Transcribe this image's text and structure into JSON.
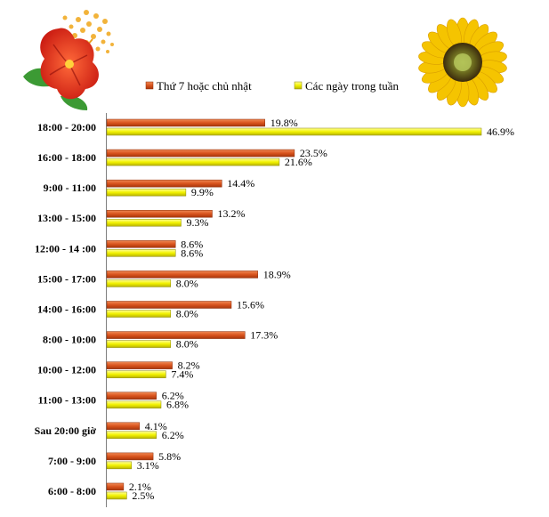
{
  "chart_data": {
    "type": "bar",
    "orientation": "horizontal",
    "categories": [
      "18:00 - 20:00",
      "16:00 - 18:00",
      "9:00 - 11:00",
      "13:00 - 15:00",
      "12:00 - 14 :00",
      "15:00 - 17:00",
      "14:00 - 16:00",
      "8:00 - 10:00",
      "10:00 - 12:00",
      "11:00 - 13:00",
      "Sau 20:00 giờ",
      "7:00 - 9:00",
      "6:00 - 8:00"
    ],
    "series": [
      {
        "name": "Thứ 7 hoặc chủ nhật",
        "color": "#d9541e",
        "values": [
          19.8,
          23.5,
          14.4,
          13.2,
          8.6,
          18.9,
          15.6,
          17.3,
          8.2,
          6.2,
          4.1,
          5.8,
          2.1
        ]
      },
      {
        "name": "Các ngày trong tuần",
        "color": "#f2f200",
        "values": [
          46.9,
          21.6,
          9.9,
          9.3,
          8.6,
          8.0,
          8.0,
          8.0,
          7.4,
          6.8,
          6.2,
          3.1,
          2.5
        ]
      }
    ],
    "value_suffix": "%",
    "legend_position": "top",
    "grid": false,
    "xlim": [
      0,
      50
    ]
  },
  "decorations": {
    "left_image": "hibiscus-flower",
    "right_image": "sunflower"
  }
}
